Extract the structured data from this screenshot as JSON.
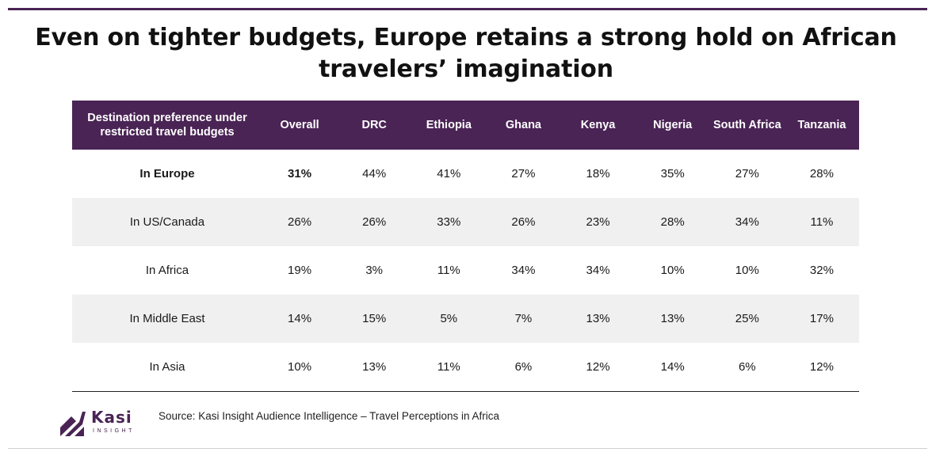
{
  "title": "Even on tighter budgets, Europe retains a strong hold on African travelers’ imagination",
  "source": "Source: Kasi Insight Audience Intelligence – Travel Perceptions in Africa",
  "logo": {
    "word": "Kasi",
    "sub": "INSIGHT"
  },
  "colors": {
    "header_bg": "#4a2455",
    "alt_row": "#f0f0f0"
  },
  "chart_data": {
    "type": "table",
    "title": "Even on tighter budgets, Europe retains a strong hold on African travelers’ imagination",
    "columns": [
      "Destination preference under restricted travel budgets",
      "Overall",
      "DRC",
      "Ethiopia",
      "Ghana",
      "Kenya",
      "Nigeria",
      "South Africa",
      "Tanzania"
    ],
    "rows": [
      {
        "label": "In Europe",
        "values": [
          "31%",
          "44%",
          "41%",
          "27%",
          "18%",
          "35%",
          "27%",
          "28%"
        ]
      },
      {
        "label": "In US/Canada",
        "values": [
          "26%",
          "26%",
          "33%",
          "26%",
          "23%",
          "28%",
          "34%",
          "11%"
        ]
      },
      {
        "label": "In Africa",
        "values": [
          "19%",
          "3%",
          "11%",
          "34%",
          "34%",
          "10%",
          "10%",
          "32%"
        ]
      },
      {
        "label": "In Middle East",
        "values": [
          "14%",
          "15%",
          "5%",
          "7%",
          "13%",
          "13%",
          "25%",
          "17%"
        ]
      },
      {
        "label": "In Asia",
        "values": [
          "10%",
          "13%",
          "11%",
          "6%",
          "12%",
          "14%",
          "6%",
          "12%"
        ]
      }
    ]
  }
}
